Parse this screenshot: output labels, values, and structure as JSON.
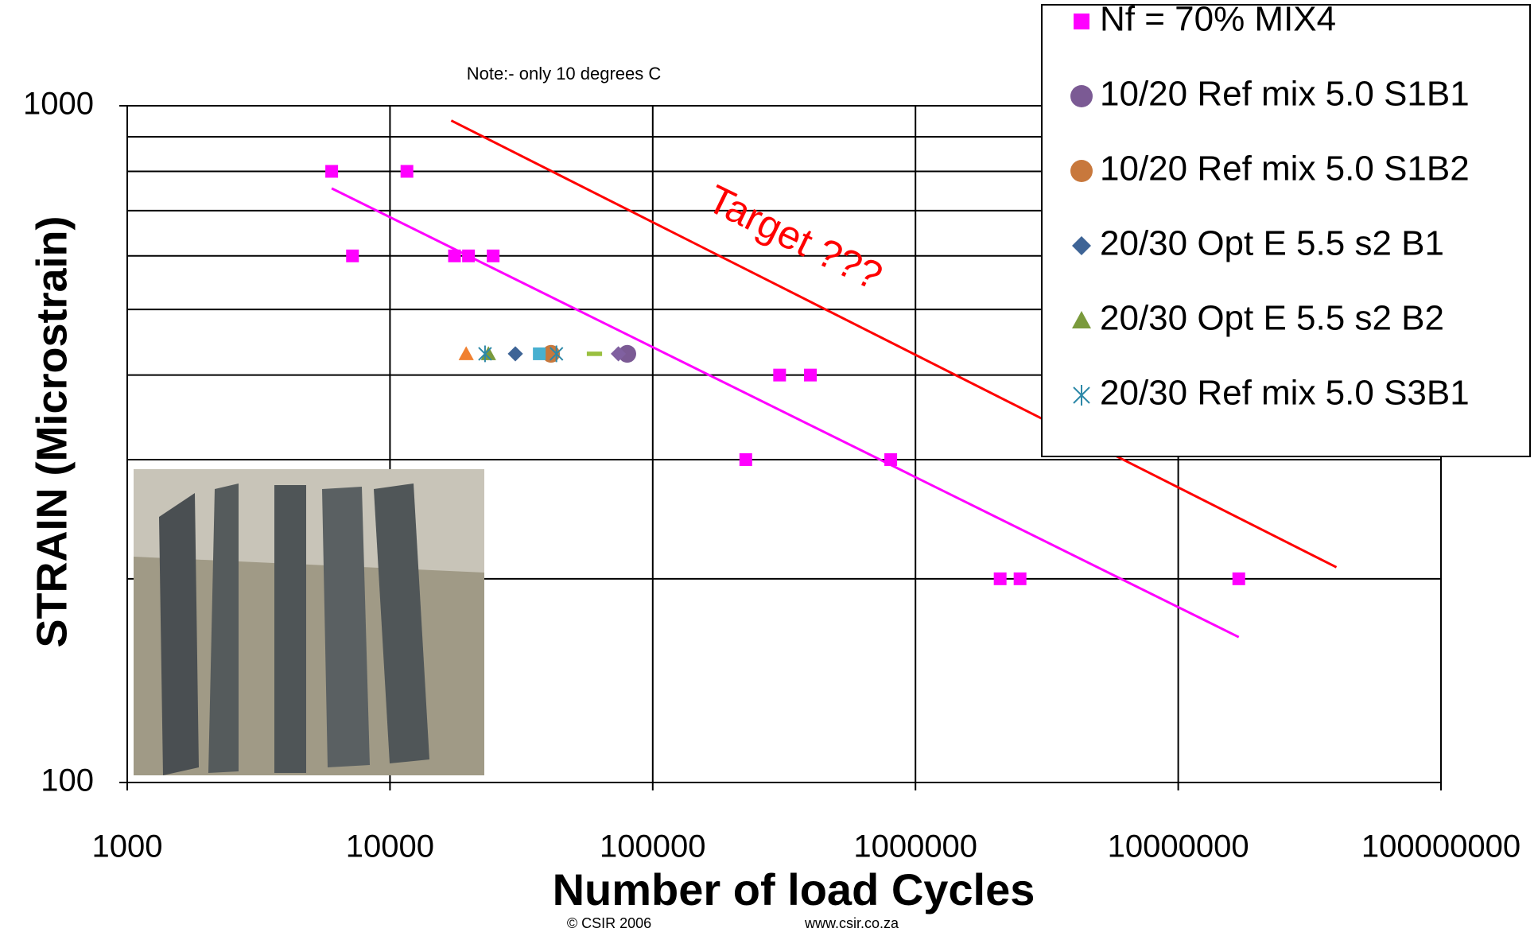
{
  "chart_data": {
    "type": "scatter",
    "x_label": "Number of load Cycles",
    "y_label": "STRAIN (Microstrain)",
    "note": "Note:- only 10 degrees C",
    "target_label": "Target ???",
    "footer": [
      "© CSIR  2006",
      "www.csir.co.za"
    ],
    "log_x": true,
    "log_y": true,
    "grid": true,
    "xlim": [
      1000,
      100000000
    ],
    "xticks": [
      1000,
      10000,
      100000,
      1000000,
      10000000,
      100000000
    ],
    "ylim": [
      100,
      1000
    ],
    "yticks": [
      100,
      1000
    ],
    "y_grid_lines": [
      200,
      300,
      400,
      500,
      600,
      700,
      800,
      900
    ],
    "legend": "top-right",
    "series": [
      {
        "name": "Nf = 70% MIX4",
        "color": "#ff00ff",
        "marker": "square",
        "x": [
          6000,
          11600,
          7200,
          17600,
          19900,
          24700,
          304000,
          398000,
          226000,
          805000,
          2100000,
          2500000,
          17000000
        ],
        "values": [
          800,
          800,
          600,
          600,
          600,
          600,
          400,
          400,
          300,
          300,
          200,
          200,
          200
        ]
      },
      {
        "name": "10/20 Ref mix 5.0 S1B1",
        "color": "#7b5a94",
        "marker": "circle",
        "x": [
          80000
        ],
        "values": [
          430
        ]
      },
      {
        "name": "10/20 Ref mix 5.0 S1B2",
        "color": "#c8783c",
        "marker": "circle",
        "x": [
          41000
        ],
        "values": [
          430
        ]
      },
      {
        "name": "20/30 Opt E 5.5 s2 B1",
        "color": "#3e6496",
        "marker": "diamond",
        "x": [
          30000
        ],
        "values": [
          430
        ]
      },
      {
        "name": "20/30 Opt E 5.5 s2 B2",
        "color": "#7a9a3c",
        "marker": "triangle",
        "x": [
          23700
        ],
        "values": [
          430
        ]
      },
      {
        "name": "20/30 Ref mix 5.0 S3B1",
        "color": "#2d88a8",
        "marker": "asterisk",
        "x": [
          23000,
          43000
        ],
        "values": [
          430,
          430
        ]
      },
      {
        "color": "#f08030",
        "marker": "triangle",
        "x": [
          19500
        ],
        "values": [
          430
        ]
      },
      {
        "color": "#48b0d0",
        "marker": "square",
        "x": [
          37000
        ],
        "values": [
          430
        ]
      },
      {
        "color": "#9ac040",
        "marker": "dash",
        "x": [
          60000
        ],
        "values": [
          430
        ]
      },
      {
        "color": "#8060a0",
        "marker": "diamond",
        "x": [
          74000
        ],
        "values": [
          430
        ]
      }
    ],
    "lines": [
      {
        "color": "#ff00ff",
        "x": [
          6000,
          17000000
        ],
        "values": [
          755,
          164
        ]
      },
      {
        "color": "#ff0000",
        "x": [
          17100,
          40000000
        ],
        "values": [
          951,
          208
        ]
      }
    ]
  }
}
